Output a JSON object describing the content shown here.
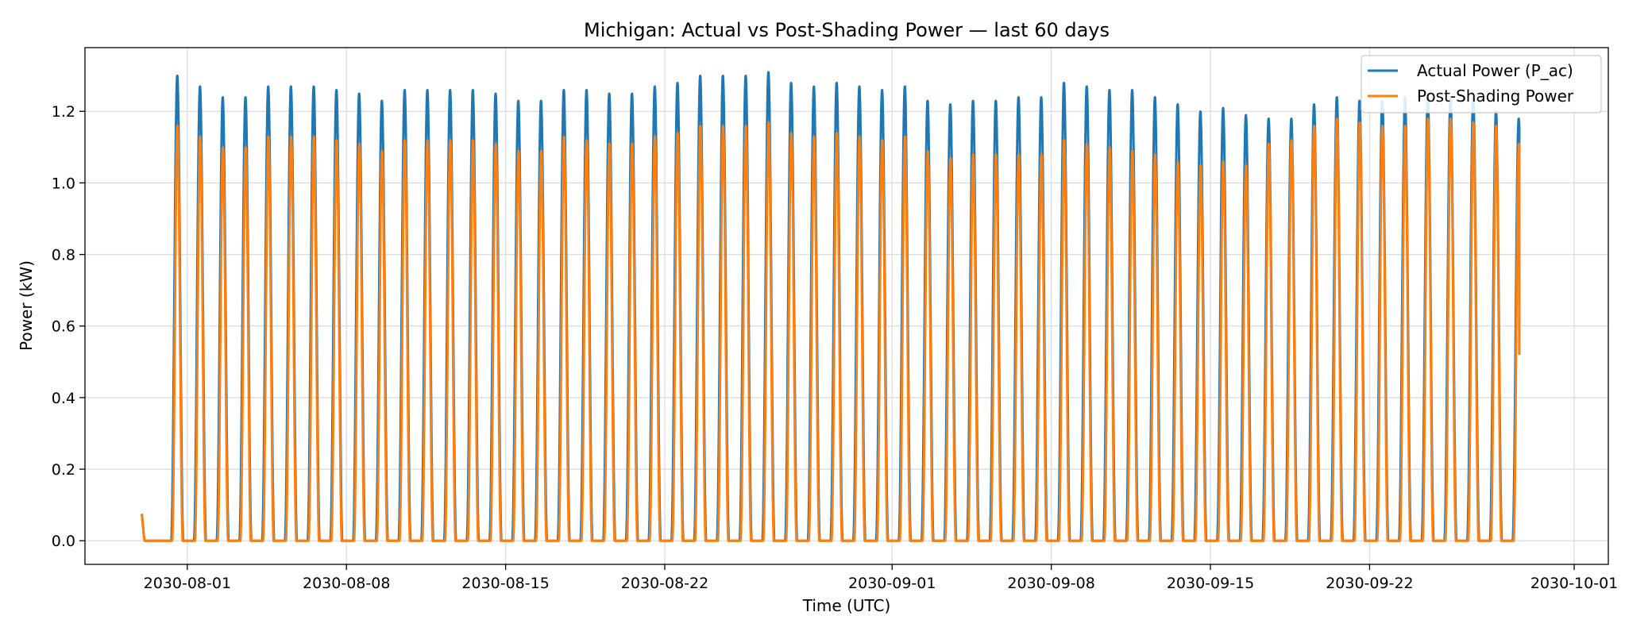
{
  "chart_data": {
    "type": "line",
    "title": "Michigan: Actual vs Post-Shading Power — last 60 days",
    "xlabel": "Time (UTC)",
    "ylabel": "Power (kW)",
    "x_range": [
      "2030-07-27T12:00",
      "2030-10-02T12:00"
    ],
    "ylim": [
      -0.066,
      1.378
    ],
    "x_ticks": [
      "2030-08-01",
      "2030-08-08",
      "2030-08-15",
      "2030-08-22",
      "2030-09-01",
      "2030-09-08",
      "2030-09-15",
      "2030-09-22",
      "2030-10-01"
    ],
    "y_ticks": [
      "0.0",
      "0.2",
      "0.4",
      "0.6",
      "0.8",
      "1.0",
      "1.2"
    ],
    "grid": true,
    "legend": "top-right",
    "series_start": "2030-07-30T00:00",
    "series_end": "2030-09-28T14:00",
    "day_dates": [
      "2030-07-30",
      "2030-07-31",
      "2030-08-01",
      "2030-08-02",
      "2030-08-03",
      "2030-08-04",
      "2030-08-05",
      "2030-08-06",
      "2030-08-07",
      "2030-08-08",
      "2030-08-09",
      "2030-08-10",
      "2030-08-11",
      "2030-08-12",
      "2030-08-13",
      "2030-08-14",
      "2030-08-15",
      "2030-08-16",
      "2030-08-17",
      "2030-08-18",
      "2030-08-19",
      "2030-08-20",
      "2030-08-21",
      "2030-08-22",
      "2030-08-23",
      "2030-08-24",
      "2030-08-25",
      "2030-08-26",
      "2030-08-27",
      "2030-08-28",
      "2030-08-29",
      "2030-08-30",
      "2030-08-31",
      "2030-09-01",
      "2030-09-02",
      "2030-09-03",
      "2030-09-04",
      "2030-09-05",
      "2030-09-06",
      "2030-09-07",
      "2030-09-08",
      "2030-09-09",
      "2030-09-10",
      "2030-09-11",
      "2030-09-12",
      "2030-09-13",
      "2030-09-14",
      "2030-09-15",
      "2030-09-16",
      "2030-09-17",
      "2030-09-18",
      "2030-09-19",
      "2030-09-20",
      "2030-09-21",
      "2030-09-22",
      "2030-09-23",
      "2030-09-24",
      "2030-09-25",
      "2030-09-26",
      "2030-09-27",
      "2030-09-28"
    ],
    "series": [
      {
        "name": "Actual Power (P_ac)",
        "color": "#1f77b4",
        "daily_peak": [
          0.0,
          1.3,
          1.27,
          1.24,
          1.24,
          1.27,
          1.27,
          1.27,
          1.26,
          1.25,
          1.23,
          1.26,
          1.26,
          1.26,
          1.26,
          1.25,
          1.23,
          1.23,
          1.26,
          1.26,
          1.25,
          1.25,
          1.27,
          1.28,
          1.3,
          1.3,
          1.3,
          1.31,
          1.28,
          1.27,
          1.28,
          1.27,
          1.26,
          1.27,
          1.23,
          1.22,
          1.23,
          1.23,
          1.24,
          1.24,
          1.28,
          1.27,
          1.26,
          1.26,
          1.24,
          1.22,
          1.2,
          1.21,
          1.19,
          1.18,
          1.18,
          1.22,
          1.24,
          1.23,
          1.23,
          1.24,
          1.24,
          1.24,
          1.24,
          1.2,
          1.18
        ]
      },
      {
        "name": "Post-Shading Power",
        "color": "#ff7f0e",
        "daily_peak": [
          0.0,
          1.16,
          1.13,
          1.1,
          1.1,
          1.13,
          1.13,
          1.13,
          1.12,
          1.11,
          1.09,
          1.12,
          1.12,
          1.12,
          1.12,
          1.11,
          1.09,
          1.09,
          1.13,
          1.12,
          1.11,
          1.11,
          1.13,
          1.14,
          1.16,
          1.16,
          1.16,
          1.17,
          1.14,
          1.13,
          1.14,
          1.13,
          1.12,
          1.13,
          1.09,
          1.07,
          1.08,
          1.08,
          1.08,
          1.08,
          1.12,
          1.11,
          1.1,
          1.09,
          1.08,
          1.06,
          1.05,
          1.06,
          1.05,
          1.11,
          1.12,
          1.16,
          1.18,
          1.17,
          1.16,
          1.16,
          1.18,
          1.18,
          1.17,
          1.16,
          1.11
        ]
      }
    ],
    "series_end_values": [
      0.52,
      0.52
    ]
  }
}
